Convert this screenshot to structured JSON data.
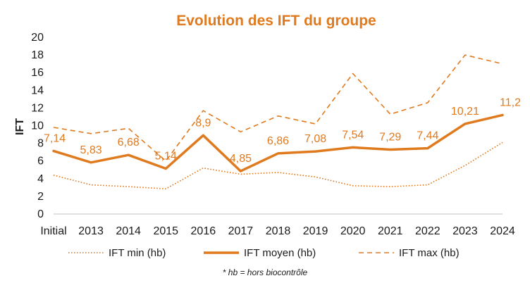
{
  "chart_data": {
    "type": "line",
    "title": "Evolution des IFT du groupe",
    "ylabel": "IFT",
    "xlabel": "",
    "ylim": [
      0,
      20
    ],
    "ytick_step": 2,
    "yticks": [
      "0",
      "2",
      "4",
      "6",
      "8",
      "10",
      "12",
      "14",
      "16",
      "18",
      "20"
    ],
    "categories": [
      "Initial",
      "2013",
      "2014",
      "2015",
      "2016",
      "2017",
      "2018",
      "2019",
      "2020",
      "2021",
      "2022",
      "2023",
      "2024"
    ],
    "grid": false,
    "legend_position": "bottom",
    "series": [
      {
        "key": "min",
        "name": "IFT min (hb)",
        "style": "dotted",
        "color": "#E07A1F",
        "values": [
          4.4,
          3.3,
          3.1,
          2.85,
          5.2,
          4.5,
          4.7,
          4.2,
          3.2,
          3.1,
          3.3,
          5.5,
          8.1
        ]
      },
      {
        "key": "moyen",
        "name": "IFT moyen (hb)",
        "style": "solid",
        "color": "#E07A1F",
        "values": [
          7.14,
          5.83,
          6.68,
          5.14,
          8.9,
          4.85,
          6.86,
          7.08,
          7.54,
          7.29,
          7.44,
          10.21,
          11.2
        ],
        "labels": [
          "7,14",
          "5,83",
          "6,68",
          "5,14",
          "8,9",
          "4,85",
          "6,86",
          "7,08",
          "7,54",
          "7,29",
          "7,44",
          "10,21",
          "11,2"
        ]
      },
      {
        "key": "max",
        "name": "IFT max (hb)",
        "style": "dashed",
        "color": "#E07A1F",
        "values": [
          9.8,
          9.1,
          9.7,
          6.0,
          11.7,
          9.3,
          11.1,
          10.2,
          15.9,
          11.3,
          12.6,
          18.0,
          17.0
        ]
      }
    ],
    "footnote": "* hb = hors biocontrôle"
  }
}
